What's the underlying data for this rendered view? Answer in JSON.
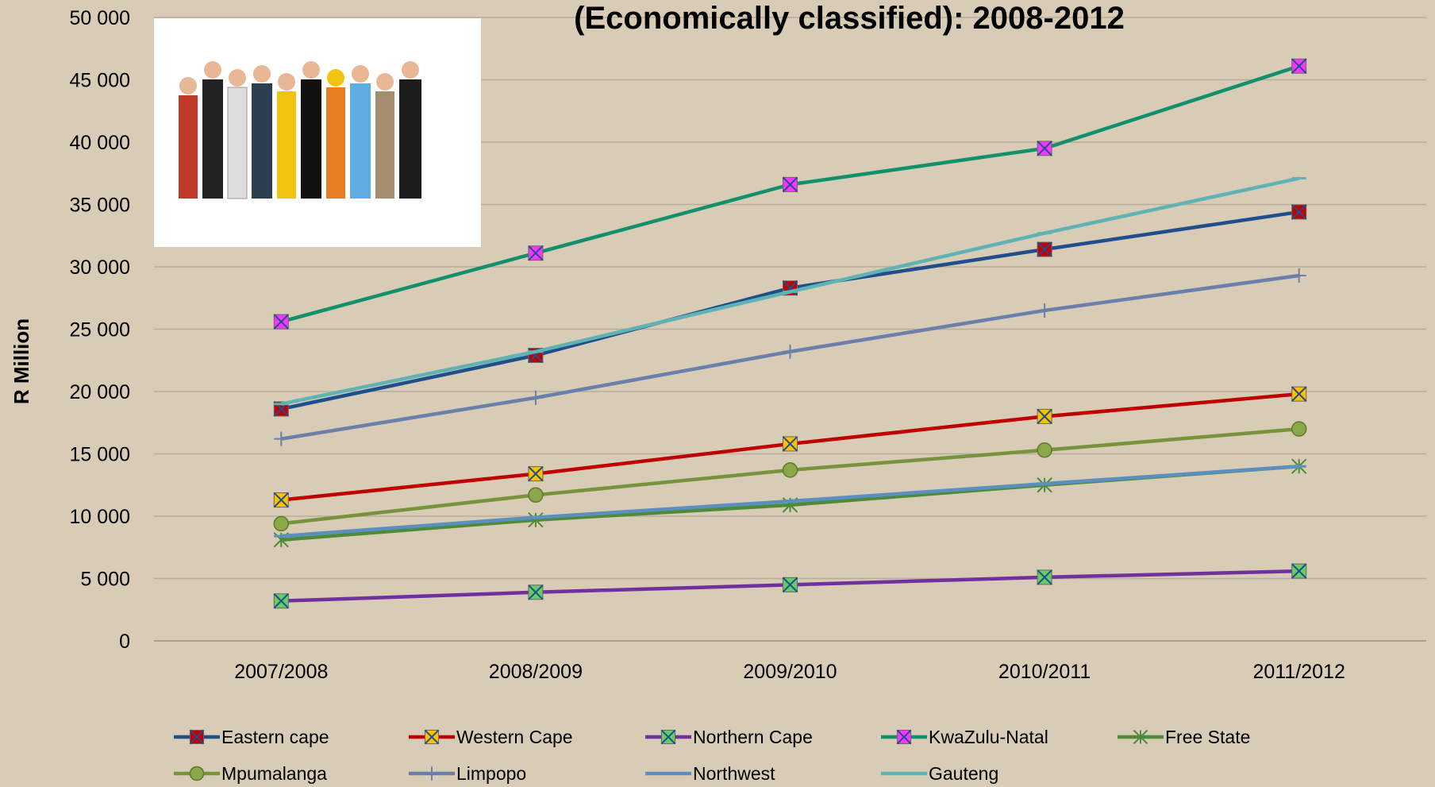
{
  "chart_data": {
    "type": "line",
    "title": "(Economically classified): 2008-2012",
    "y_label": "R Million",
    "categories": [
      "2007/2008",
      "2008/2009",
      "2009/2010",
      "2010/2011",
      "2011/2012"
    ],
    "ylim": [
      0,
      50000
    ],
    "yticks": [
      0,
      {
        "value": 5000,
        "label": "5 000"
      },
      {
        "value": 10000,
        "label": "10 000"
      },
      {
        "value": 15000,
        "label": "15 000"
      },
      {
        "value": 20000,
        "label": "20 000"
      },
      {
        "value": 25000,
        "label": "25 000"
      },
      {
        "value": 30000,
        "label": "30 000"
      },
      {
        "value": 35000,
        "label": "35 000"
      },
      {
        "value": 40000,
        "label": "40 000"
      },
      {
        "value": 45000,
        "label": "45 000"
      },
      {
        "value": 50000,
        "label": "50 000"
      }
    ],
    "grid": true,
    "legend": "bottom",
    "series": [
      {
        "name": "Eastern cape",
        "color": "#1f4e8c",
        "marker": "square-x",
        "marker_color": "#c00000",
        "values": [
          18600,
          22900,
          28300,
          31400,
          34400
        ]
      },
      {
        "name": "Western Cape",
        "color": "#c00000",
        "marker": "square-x",
        "marker_color": "#ffc000",
        "values": [
          11300,
          13400,
          15800,
          18000,
          19800
        ]
      },
      {
        "name": "Northern Cape",
        "color": "#7030a0",
        "marker": "square-x",
        "marker_color": "#66cc66",
        "values": [
          3200,
          3900,
          4500,
          5100,
          5600
        ]
      },
      {
        "name": "KwaZulu-Natal",
        "color": "#12906b",
        "marker": "square-x",
        "marker_color": "#ff33ff",
        "values": [
          25600,
          31100,
          36600,
          39500,
          46100
        ]
      },
      {
        "name": "Free State",
        "color": "#4e8a3a",
        "marker": "star",
        "marker_color": "#4e8a3a",
        "values": [
          8100,
          9700,
          10900,
          12500,
          14000
        ]
      },
      {
        "name": "Mpumalanga",
        "color": "#77933c",
        "marker": "circle",
        "marker_color": "#8aa84a",
        "values": [
          9400,
          11700,
          13700,
          15300,
          17000
        ]
      },
      {
        "name": "Limpopo",
        "color": "#6b7fab",
        "marker": "plus",
        "marker_color": "#6b7fab",
        "values": [
          16200,
          19500,
          23200,
          26500,
          29300
        ]
      },
      {
        "name": "Northwest",
        "color": "#5b8fc0",
        "marker": "dash",
        "marker_color": "#5b8fc0",
        "values": [
          8400,
          9900,
          11200,
          12600,
          14000
        ]
      },
      {
        "name": "Gauteng",
        "color": "#5fb3b3",
        "marker": "dash",
        "marker_color": "#5fb3b3",
        "values": [
          19000,
          23200,
          28000,
          32700,
          37100
        ]
      }
    ]
  }
}
